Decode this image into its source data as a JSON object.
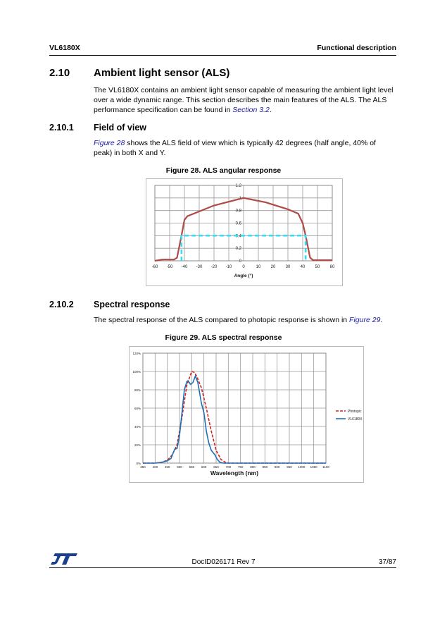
{
  "header": {
    "left": "VL6180X",
    "right": "Functional description"
  },
  "section": {
    "number": "2.10",
    "title": "Ambient light sensor (ALS)",
    "text_before": "The VL6180X contains an ambient light sensor capable of measuring the ambient light level over a wide dynamic range. This section describes the main features of the ALS. The ALS performance specification can be found in ",
    "link": "Section 3.2",
    "text_after": "."
  },
  "sub1": {
    "number": "2.10.1",
    "title": "Field of view",
    "link": "Figure 28",
    "text": " shows the ALS field of view which is typically 42 degrees (half angle, 40% of peak) in both X and Y."
  },
  "sub2": {
    "number": "2.10.2",
    "title": "Spectral response",
    "text": "The spectral response of the ALS compared to photopic response is shown in ",
    "link": "Figure 29",
    "text_after": "."
  },
  "fig28_caption": "Figure 28. ALS angular response",
  "fig29_caption": "Figure 29. ALS spectral response",
  "footer": {
    "doc": "DocID026171 Rev 7",
    "page": "37/87",
    "logo": "ST"
  },
  "chart_data": [
    {
      "type": "line",
      "xlabel": "Angle (°)",
      "ylabel": "",
      "xlim": [
        -60,
        60
      ],
      "ylim": [
        0,
        1.2
      ],
      "grid": true,
      "xticks": [
        "-60",
        "-50",
        "-40",
        "-30",
        "-20",
        "-10",
        "0",
        "10",
        "20",
        "30",
        "40",
        "50",
        "60"
      ],
      "yticks": [
        "0",
        "0.2",
        "0.4",
        "0.6",
        "0.8",
        "1",
        "1.2"
      ],
      "series": [
        {
          "color": "#b04a48",
          "style": "solid",
          "x": [
            -60,
            -55,
            -47,
            -45,
            -42,
            -40,
            -38,
            -20,
            0,
            15,
            30,
            37,
            40,
            42,
            45,
            47,
            60
          ],
          "y": [
            0,
            0.02,
            0.02,
            0.05,
            0.4,
            0.65,
            0.71,
            0.88,
            1,
            0.93,
            0.82,
            0.75,
            0.6,
            0.4,
            0.05,
            0.01,
            0.01
          ]
        },
        {
          "color": "#33e0f0",
          "style": "dashed",
          "x": [
            -42,
            -42,
            42,
            42
          ],
          "y": [
            0,
            0.4,
            0.4,
            0
          ]
        }
      ]
    },
    {
      "type": "line",
      "xlabel": "Wavelength (nm)",
      "ylabel": "",
      "xlim": [
        350,
        1100
      ],
      "ylim": [
        0,
        120
      ],
      "grid": true,
      "legend": "right",
      "xticks": [
        "350",
        "400",
        "450",
        "500",
        "550",
        "600",
        "650",
        "700",
        "750",
        "800",
        "850",
        "900",
        "950",
        "1000",
        "1050",
        "1100"
      ],
      "yticks": [
        "0%",
        "20%",
        "40%",
        "60%",
        "80%",
        "100%",
        "120%"
      ],
      "series": [
        {
          "name": "Photopic",
          "color": "#d42020",
          "style": "dashed",
          "x": [
            350,
            400,
            420,
            450,
            470,
            490,
            510,
            530,
            550,
            560,
            570,
            590,
            610,
            630,
            650,
            670,
            690,
            700,
            1100
          ],
          "y": [
            0,
            0,
            0.5,
            3,
            9,
            20,
            50,
            85,
            100,
            99,
            95,
            82,
            60,
            35,
            14,
            4,
            0.5,
            0,
            0
          ]
        },
        {
          "name": "VL6180X",
          "color": "#1f6fb5",
          "style": "solid",
          "x": [
            350,
            400,
            430,
            450,
            465,
            480,
            490,
            500,
            510,
            520,
            530,
            535,
            545,
            555,
            565,
            575,
            590,
            600,
            610,
            620,
            630,
            645,
            655,
            665,
            680,
            1100
          ],
          "y": [
            0,
            0,
            1,
            2.5,
            5,
            15,
            16,
            30,
            55,
            80,
            89,
            90,
            86,
            88,
            95,
            88,
            65,
            55,
            35,
            22,
            14,
            9,
            4,
            1,
            0,
            0
          ]
        }
      ]
    }
  ]
}
